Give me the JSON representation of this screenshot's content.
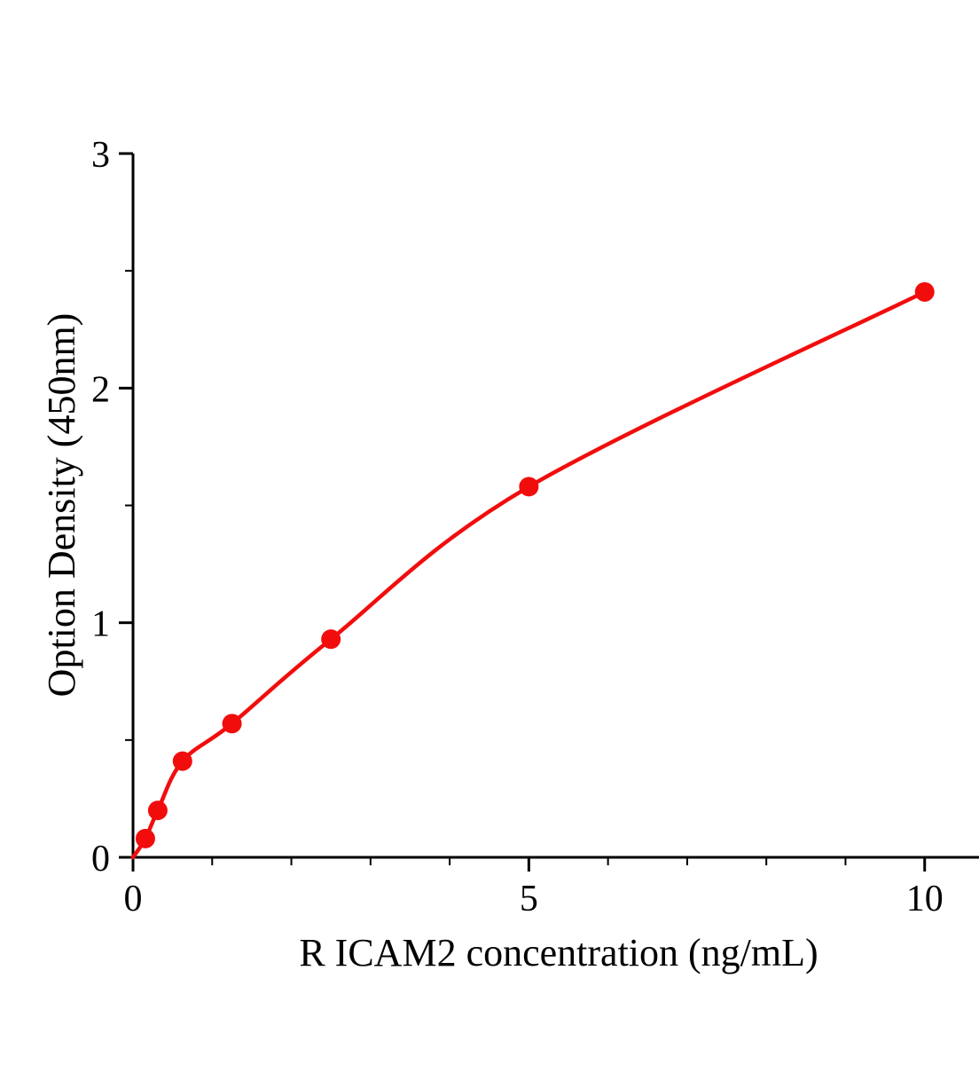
{
  "figure": {
    "background": "#ffffff"
  },
  "chart_data": {
    "type": "scatter",
    "title": "",
    "xlabel": "R ICAM2 concentration (ng/mL)",
    "ylabel": "Option Density (450nm)",
    "x": [
      0.156,
      0.3125,
      0.625,
      1.25,
      2.5,
      5,
      10
    ],
    "y": [
      0.08,
      0.2,
      0.41,
      0.57,
      0.93,
      1.58,
      2.41
    ],
    "fit": "smooth power-law standard curve through points starting at origin",
    "xlim": [
      0,
      11
    ],
    "ylim": [
      0,
      3
    ],
    "x_major_ticks": [
      0,
      5,
      10
    ],
    "x_minor_step": 1,
    "y_major_ticks": [
      0,
      1,
      2,
      3
    ],
    "y_minor_step": 0.5,
    "grid": false,
    "legend": "none",
    "series_color": "#f20d0d",
    "axis_color": "#000000",
    "marker": "filled-circle",
    "marker_radius": 11
  }
}
